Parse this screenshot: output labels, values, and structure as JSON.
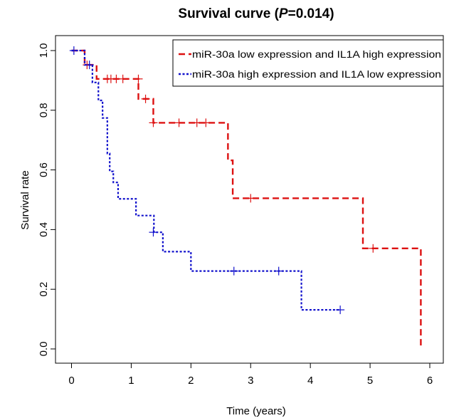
{
  "chart_data": {
    "type": "line",
    "title": {
      "prefix": "Survival curve (",
      "italic": "P",
      "suffix": "=0.014)"
    },
    "xlabel": "Time (years)",
    "ylabel": "Survival rate",
    "xlim": [
      0,
      6
    ],
    "ylim": [
      0,
      1
    ],
    "xticks": [
      "0",
      "1",
      "2",
      "3",
      "4",
      "5",
      "6"
    ],
    "yticks": [
      "0.0",
      "0.2",
      "0.4",
      "0.6",
      "0.8",
      "1.0"
    ],
    "grid": false,
    "legend_position": "top-right",
    "series": [
      {
        "name": "miR-30a low expression and IL1A high expression",
        "color": "#dd1111",
        "dash": "dashed",
        "steps": [
          [
            0.0,
            1.0
          ],
          [
            0.22,
            0.952
          ],
          [
            0.42,
            0.905
          ],
          [
            1.12,
            0.838
          ],
          [
            1.37,
            0.758
          ],
          [
            2.62,
            0.632
          ],
          [
            2.7,
            0.505
          ],
          [
            4.88,
            0.337
          ],
          [
            5.85,
            0.0
          ]
        ],
        "end_x": 5.85,
        "censored": [
          [
            0.26,
            0.952
          ],
          [
            0.6,
            0.905
          ],
          [
            0.66,
            0.905
          ],
          [
            0.75,
            0.905
          ],
          [
            0.86,
            0.905
          ],
          [
            1.12,
            0.905
          ],
          [
            1.24,
            0.838
          ],
          [
            1.37,
            0.758
          ],
          [
            1.8,
            0.758
          ],
          [
            2.1,
            0.758
          ],
          [
            2.25,
            0.758
          ],
          [
            3.0,
            0.505
          ],
          [
            5.05,
            0.337
          ]
        ]
      },
      {
        "name": "miR-30a high expression and IL1A low expression",
        "color": "#1111cc",
        "dash": "dotted",
        "steps": [
          [
            0.0,
            1.0
          ],
          [
            0.22,
            0.952
          ],
          [
            0.35,
            0.893
          ],
          [
            0.45,
            0.833
          ],
          [
            0.52,
            0.774
          ],
          [
            0.6,
            0.655
          ],
          [
            0.64,
            0.595
          ],
          [
            0.7,
            0.558
          ],
          [
            0.78,
            0.503
          ],
          [
            1.08,
            0.447
          ],
          [
            1.38,
            0.391
          ],
          [
            1.53,
            0.326
          ],
          [
            2.0,
            0.261
          ],
          [
            3.85,
            0.131
          ]
        ],
        "end_x": 4.5,
        "censored": [
          [
            0.04,
            1.0
          ],
          [
            0.3,
            0.952
          ],
          [
            1.37,
            0.391
          ],
          [
            2.72,
            0.261
          ],
          [
            3.47,
            0.261
          ],
          [
            4.5,
            0.131
          ]
        ]
      }
    ]
  }
}
